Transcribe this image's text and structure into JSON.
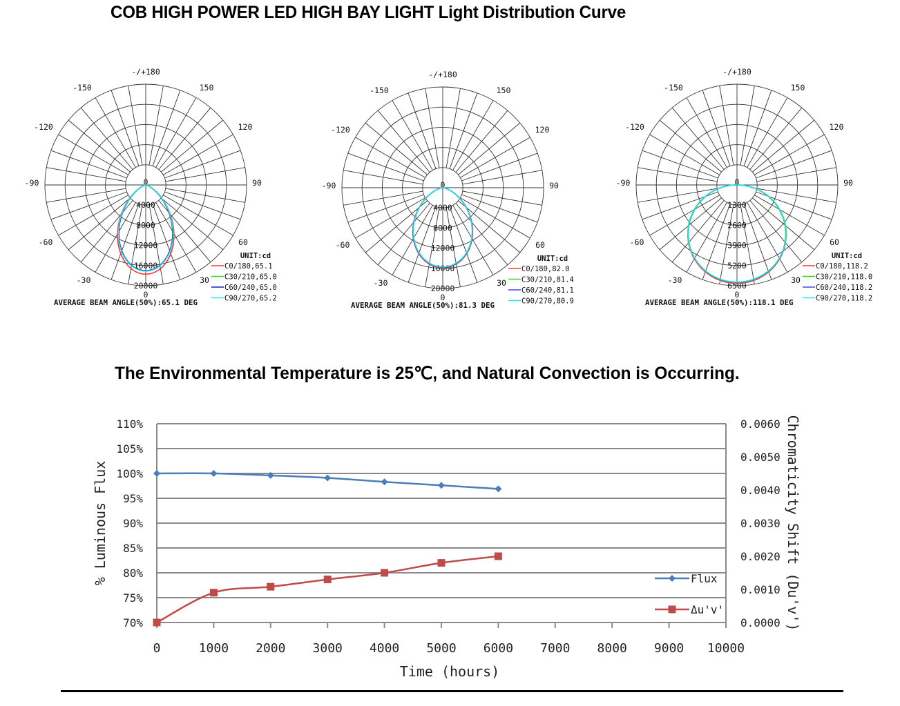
{
  "page": {
    "title": "COB HIGH POWER LED HIGH BAY LIGHT Light Distribution Curve",
    "env_title": "The Environmental Temperature is 25℃, and Natural Convection is Occurring."
  },
  "chart_data": [
    {
      "type": "polar",
      "id": "polar-1",
      "angle_labels": {
        "top": "-/+180",
        "m150": "-150",
        "p150": "150",
        "m120": "-120",
        "p120": "120",
        "m90": "-90",
        "p90": "90",
        "m60": "-60",
        "p60": "60",
        "m30": "-30",
        "p30": "30",
        "bottom": "0",
        "center": "0"
      },
      "radial_ticks": [
        "4000",
        "8000",
        "12000",
        "16000",
        "20000"
      ],
      "rmax": 20000,
      "unit_label": "UNIT:cd",
      "footer": "AVERAGE BEAM ANGLE(50%):65.1 DEG",
      "series": [
        {
          "name": "C0/180,65.1",
          "color": "#ff3333",
          "beam_angle": 65.1,
          "peak": 17700,
          "shape": 3.2
        },
        {
          "name": "C30/210,65.0",
          "color": "#22dd22",
          "beam_angle": 65.0,
          "peak": 17100,
          "shape": 3.3
        },
        {
          "name": "C60/240,65.0",
          "color": "#1a1acc",
          "beam_angle": 65.0,
          "peak": 17000,
          "shape": 3.3
        },
        {
          "name": "C90/270,65.2",
          "color": "#22e6e6",
          "beam_angle": 65.2,
          "peak": 17100,
          "shape": 3.25
        }
      ]
    },
    {
      "type": "polar",
      "id": "polar-2",
      "angle_labels": {
        "top": "-/+180",
        "m150": "-150",
        "p150": "150",
        "m120": "-120",
        "p120": "120",
        "m90": "-90",
        "p90": "90",
        "m60": "-60",
        "p60": "60",
        "m30": "-30",
        "p30": "30",
        "bottom": "0",
        "center": "0"
      },
      "radial_ticks": [
        "4000",
        "8000",
        "12000",
        "16000",
        "20000"
      ],
      "rmax": 20000,
      "unit_label": "UNIT:cd",
      "footer": "AVERAGE BEAM ANGLE(50%):81.3 DEG",
      "series": [
        {
          "name": "C0/180,82.0",
          "color": "#ff3333",
          "beam_angle": 82.0,
          "peak": 15900,
          "shape": 2.15
        },
        {
          "name": "C30/210,81.4",
          "color": "#22dd22",
          "beam_angle": 81.4,
          "peak": 15800,
          "shape": 2.2
        },
        {
          "name": "C60/240,81.1",
          "color": "#4444ee",
          "beam_angle": 81.1,
          "peak": 15800,
          "shape": 2.22
        },
        {
          "name": "C90/270,80.9",
          "color": "#22e6e6",
          "beam_angle": 80.9,
          "peak": 15700,
          "shape": 2.25
        }
      ]
    },
    {
      "type": "polar",
      "id": "polar-3",
      "angle_labels": {
        "top": "-/+180",
        "m150": "-150",
        "p150": "150",
        "m120": "-120",
        "p120": "120",
        "m90": "-90",
        "p90": "90",
        "m60": "-60",
        "p60": "60",
        "m30": "-30",
        "p30": "30",
        "bottom": "0",
        "center": "0"
      },
      "radial_ticks": [
        "1300",
        "2600",
        "3900",
        "5200",
        "6500"
      ],
      "rmax": 6500,
      "unit_label": "UNIT:cd",
      "footer": "AVERAGE BEAM ANGLE(50%):118.1 DEG",
      "series": [
        {
          "name": "C0/180,118.2",
          "color": "#ff3333",
          "beam_angle": 118.2,
          "peak": 6350,
          "shape": 1.0
        },
        {
          "name": "C30/210,118.0",
          "color": "#22dd22",
          "beam_angle": 118.0,
          "peak": 6300,
          "shape": 1.02
        },
        {
          "name": "C60/240,118.2",
          "color": "#4444ee",
          "beam_angle": 118.2,
          "peak": 6280,
          "shape": 1.0
        },
        {
          "name": "C90/270,118.2",
          "color": "#22e6e6",
          "beam_angle": 118.2,
          "peak": 6260,
          "shape": 1.0
        }
      ]
    },
    {
      "type": "line",
      "id": "lumen-maintenance",
      "title": "",
      "xlabel": "Time (hours)",
      "ylabel": "% Luminous Flux",
      "y2label": "Chromaticity Shift (Du'v')",
      "x_ticks": [
        "0",
        "1000",
        "2000",
        "3000",
        "4000",
        "5000",
        "6000",
        "7000",
        "8000",
        "9000",
        "10000"
      ],
      "xlim": [
        0,
        10000
      ],
      "y_ticks": [
        "70%",
        "75%",
        "80%",
        "85%",
        "90%",
        "95%",
        "100%",
        "105%",
        "110%"
      ],
      "ylim": [
        70,
        110
      ],
      "y2_ticks": [
        "0.0000",
        "0.0010",
        "0.0020",
        "0.0030",
        "0.0040",
        "0.0050",
        "0.0060"
      ],
      "y2lim": [
        0,
        0.006
      ],
      "grid": true,
      "legend_position": "bottom-right",
      "series": [
        {
          "name": "Flux",
          "axis": "left",
          "color": "#4a7ebb",
          "marker": "diamond",
          "x": [
            0,
            1000,
            2000,
            3000,
            4000,
            5000,
            6000
          ],
          "y": [
            100,
            100,
            99.6,
            99.1,
            98.3,
            97.6,
            96.9
          ]
        },
        {
          "name": "Δu'v'",
          "axis": "right",
          "color": "#be4b48",
          "marker": "square",
          "x": [
            0,
            1000,
            2000,
            3000,
            4000,
            5000,
            6000
          ],
          "y": [
            0.0,
            0.0009,
            0.00108,
            0.0013,
            0.0015,
            0.0018,
            0.002
          ]
        }
      ]
    }
  ]
}
